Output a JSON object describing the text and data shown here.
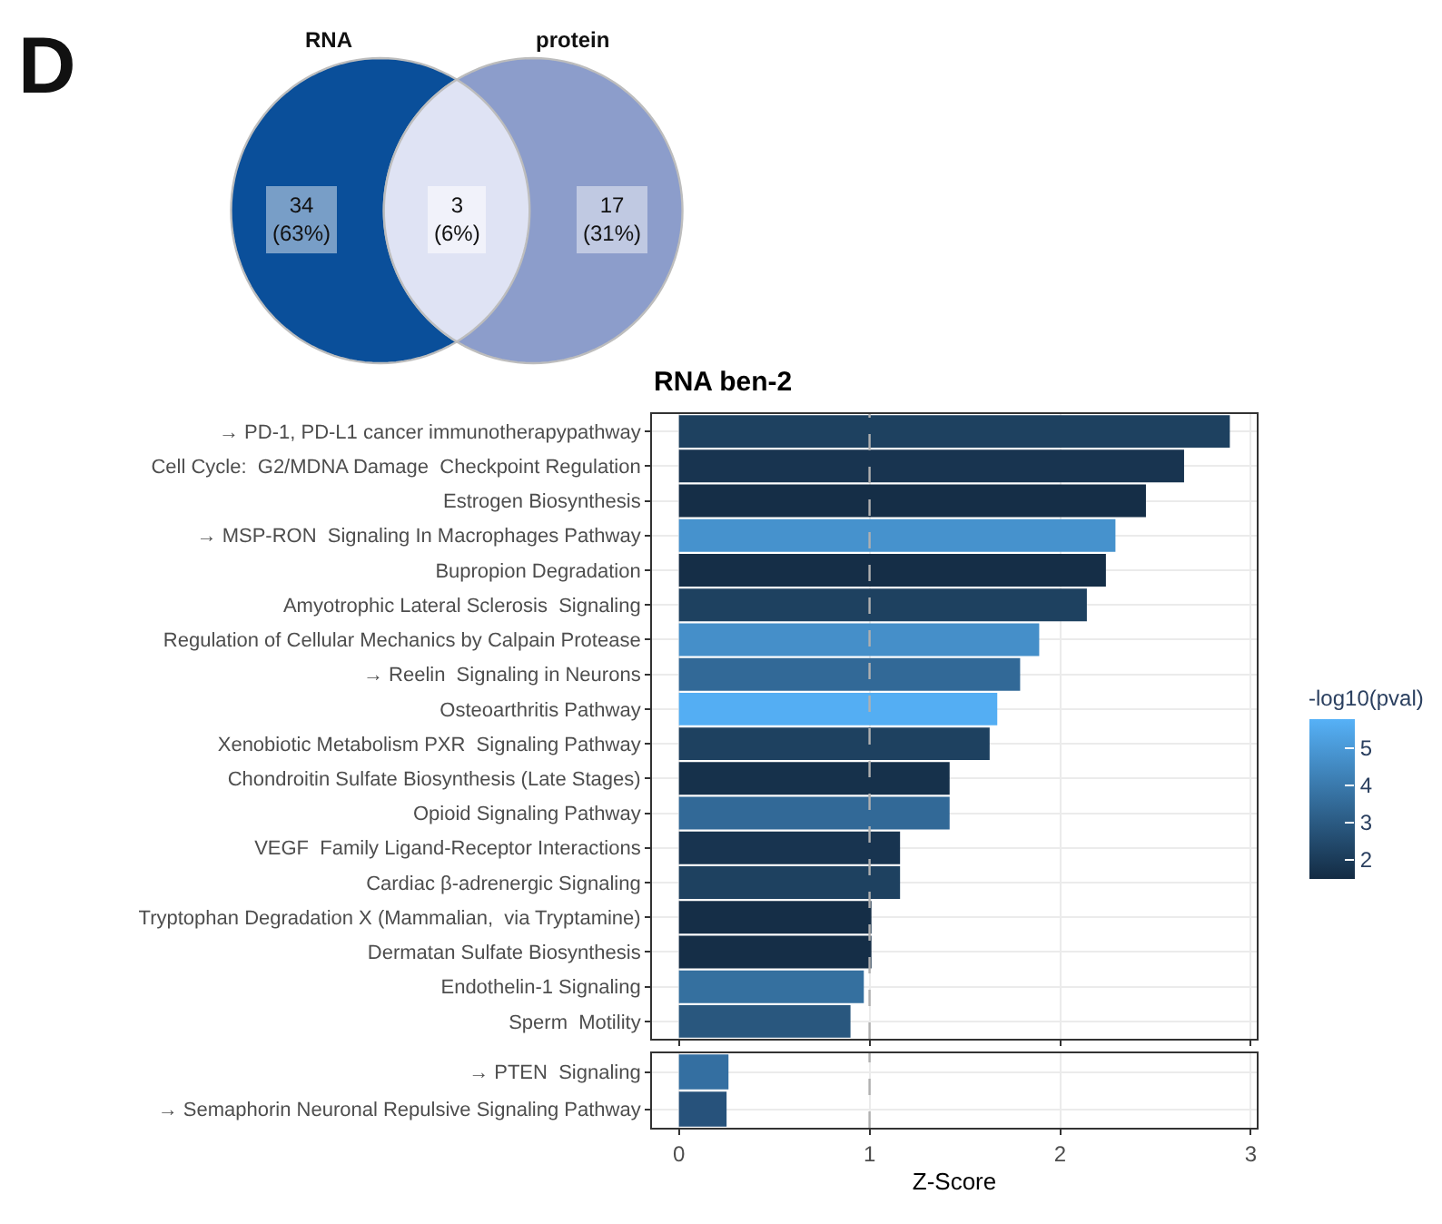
{
  "chart_data": [
    {
      "type": "other",
      "annotations": [
        "D",
        "RNA",
        "protein",
        "34\n(63%)",
        "3\n(6%)",
        "17\n(31%)"
      ]
    },
    {
      "type": "bar",
      "orientation": "horizontal",
      "title": "RNA ben-2",
      "categories": [
        "→ PD-1, PD-L1 cancer immunotherapypathway",
        "Cell Cycle:  G2/MDNA Damage  Checkpoint Regulation",
        "Estrogen Biosynthesis",
        "→ MSP-RON  Signaling In Macrophages Pathway",
        "Bupropion Degradation",
        "Amyotrophic Lateral Sclerosis  Signaling",
        "Regulation of Cellular Mechanics by Calpain Protease",
        "→ Reelin  Signaling in Neurons",
        "Osteoarthritis Pathway",
        "Xenobiotic Metabolism PXR  Signaling Pathway",
        "Chondroitin Sulfate Biosynthesis (Late Stages)",
        "Opioid Signaling Pathway",
        "VEGF  Family Ligand-Receptor Interactions",
        "Cardiac β-adrenergic Signaling",
        "Tryptophan Degradation X (Mammalian,  via Tryptamine)",
        "Dermatan Sulfate Biosynthesis",
        "Endothelin-1 Signaling",
        "Sperm  Motility"
      ],
      "values": [
        2.89,
        2.65,
        2.45,
        2.29,
        2.24,
        2.14,
        1.89,
        1.79,
        1.67,
        1.63,
        1.42,
        1.42,
        1.16,
        1.16,
        1.01,
        1.01,
        0.97,
        0.9
      ],
      "cvalues": [
        2.2,
        1.8,
        1.6,
        4.8,
        1.6,
        2.2,
        4.7,
        3.5,
        5.7,
        2.2,
        1.7,
        3.5,
        1.8,
        2.2,
        1.6,
        1.6,
        3.7,
        2.9
      ],
      "clabel": "-log10(pval)",
      "clim": [
        1.5,
        5.8
      ],
      "cticks": [
        2,
        3,
        4,
        5
      ],
      "xlim": [
        -0.14,
        3.03
      ],
      "xticks": [
        0,
        1,
        2,
        3
      ],
      "tick_labels": "y",
      "ref_lines": [
        {
          "axis": "x",
          "value": 1,
          "line_style": "dashed",
          "color": "#b0b0b0"
        }
      ],
      "grid": true
    },
    {
      "type": "bar",
      "orientation": "horizontal",
      "xlabel": "Z-Score",
      "categories": [
        "→ PTEN  Signaling",
        "→ Semaphorin Neuronal Repulsive Signaling Pathway"
      ],
      "values": [
        0.26,
        0.25
      ],
      "colors": [
        "#346fa1",
        "#27527b"
      ],
      "xlim": [
        -0.14,
        3.03
      ],
      "xticks": [
        0,
        1,
        2,
        3
      ],
      "ref_lines": [
        {
          "axis": "x",
          "value": 1,
          "line_style": "dashed",
          "color": "#b0b0b0"
        }
      ],
      "grid": true
    }
  ]
}
